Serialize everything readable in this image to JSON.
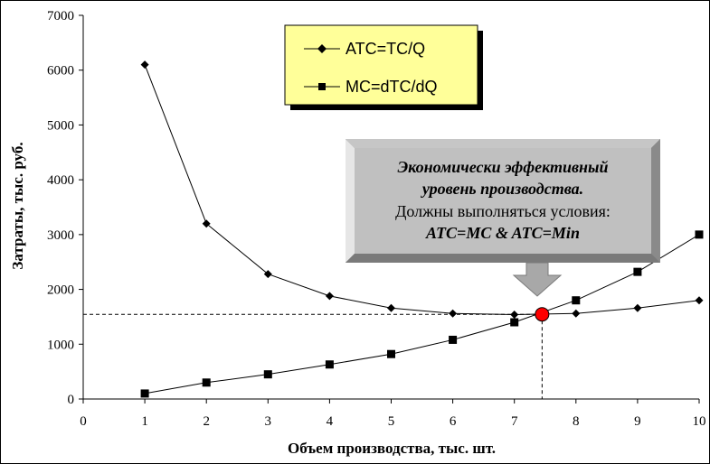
{
  "chart_data": {
    "type": "line",
    "xlabel": "Объем производства, тыс. шт.",
    "ylabel": "Затраты, тыс. руб.",
    "xlim": [
      0,
      10
    ],
    "ylim": [
      0,
      7000
    ],
    "x_ticks": [
      "0",
      "1",
      "2",
      "3",
      "4",
      "5",
      "6",
      "7",
      "8",
      "9",
      "10"
    ],
    "y_ticks": [
      "0",
      "1000",
      "2000",
      "3000",
      "4000",
      "5000",
      "6000",
      "7000"
    ],
    "grid": false,
    "legend_position": "top-center",
    "x": [
      1,
      2,
      3,
      4,
      5,
      6,
      7,
      8,
      9,
      10
    ],
    "series": [
      {
        "name": "ATC=TC/Q",
        "marker": "diamond",
        "values": [
          6100,
          3200,
          2280,
          1880,
          1660,
          1560,
          1540,
          1560,
          1660,
          1800
        ]
      },
      {
        "name": "MC=dTC/dQ",
        "marker": "square",
        "values": [
          100,
          300,
          450,
          630,
          820,
          1080,
          1400,
          1800,
          2320,
          3000
        ]
      }
    ],
    "optimum_point": {
      "x": 7.45,
      "y": 1545
    },
    "callout": {
      "line1": "Экономически эффективный",
      "line2": "уровень производства.",
      "line3": "Должны выполняться условия:",
      "line4": "ATC=MC & ATC=Min"
    },
    "colors": {
      "plot_background": "#ffffff",
      "legend_background": "#ffff99",
      "callout_background": "#c0c0c0",
      "callout_shadow": "#808080",
      "optimum_point": "#ff0000",
      "line": "#000000"
    }
  }
}
